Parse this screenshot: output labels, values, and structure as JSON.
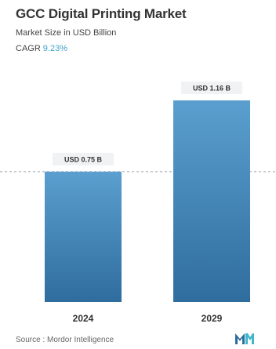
{
  "header": {
    "title": "GCC Digital Printing Market",
    "subtitle": "Market Size in USD Billion",
    "cagr_label": "CAGR",
    "cagr_value": "9.23%"
  },
  "footer": {
    "source": "Source : Mordor Intelligence"
  },
  "colors": {
    "bar_top": "#5a9fcf",
    "bar_bottom": "#2f6d9e",
    "cagr": "#3fa2c8",
    "logo_primary": "#2b6c9d",
    "logo_accent": "#3fb6c9"
  },
  "chart_data": {
    "type": "bar",
    "title": "GCC Digital Printing Market",
    "categories": [
      "2024",
      "2029"
    ],
    "values": [
      0.75,
      1.16
    ],
    "data_labels": [
      "USD 0.75 B",
      "USD 1.16 B"
    ],
    "ylabel": "Market Size in USD Billion",
    "ylim": [
      0,
      1.16
    ],
    "grid": false,
    "legend": "none",
    "reference_line": "dashed line at 2024 value"
  }
}
